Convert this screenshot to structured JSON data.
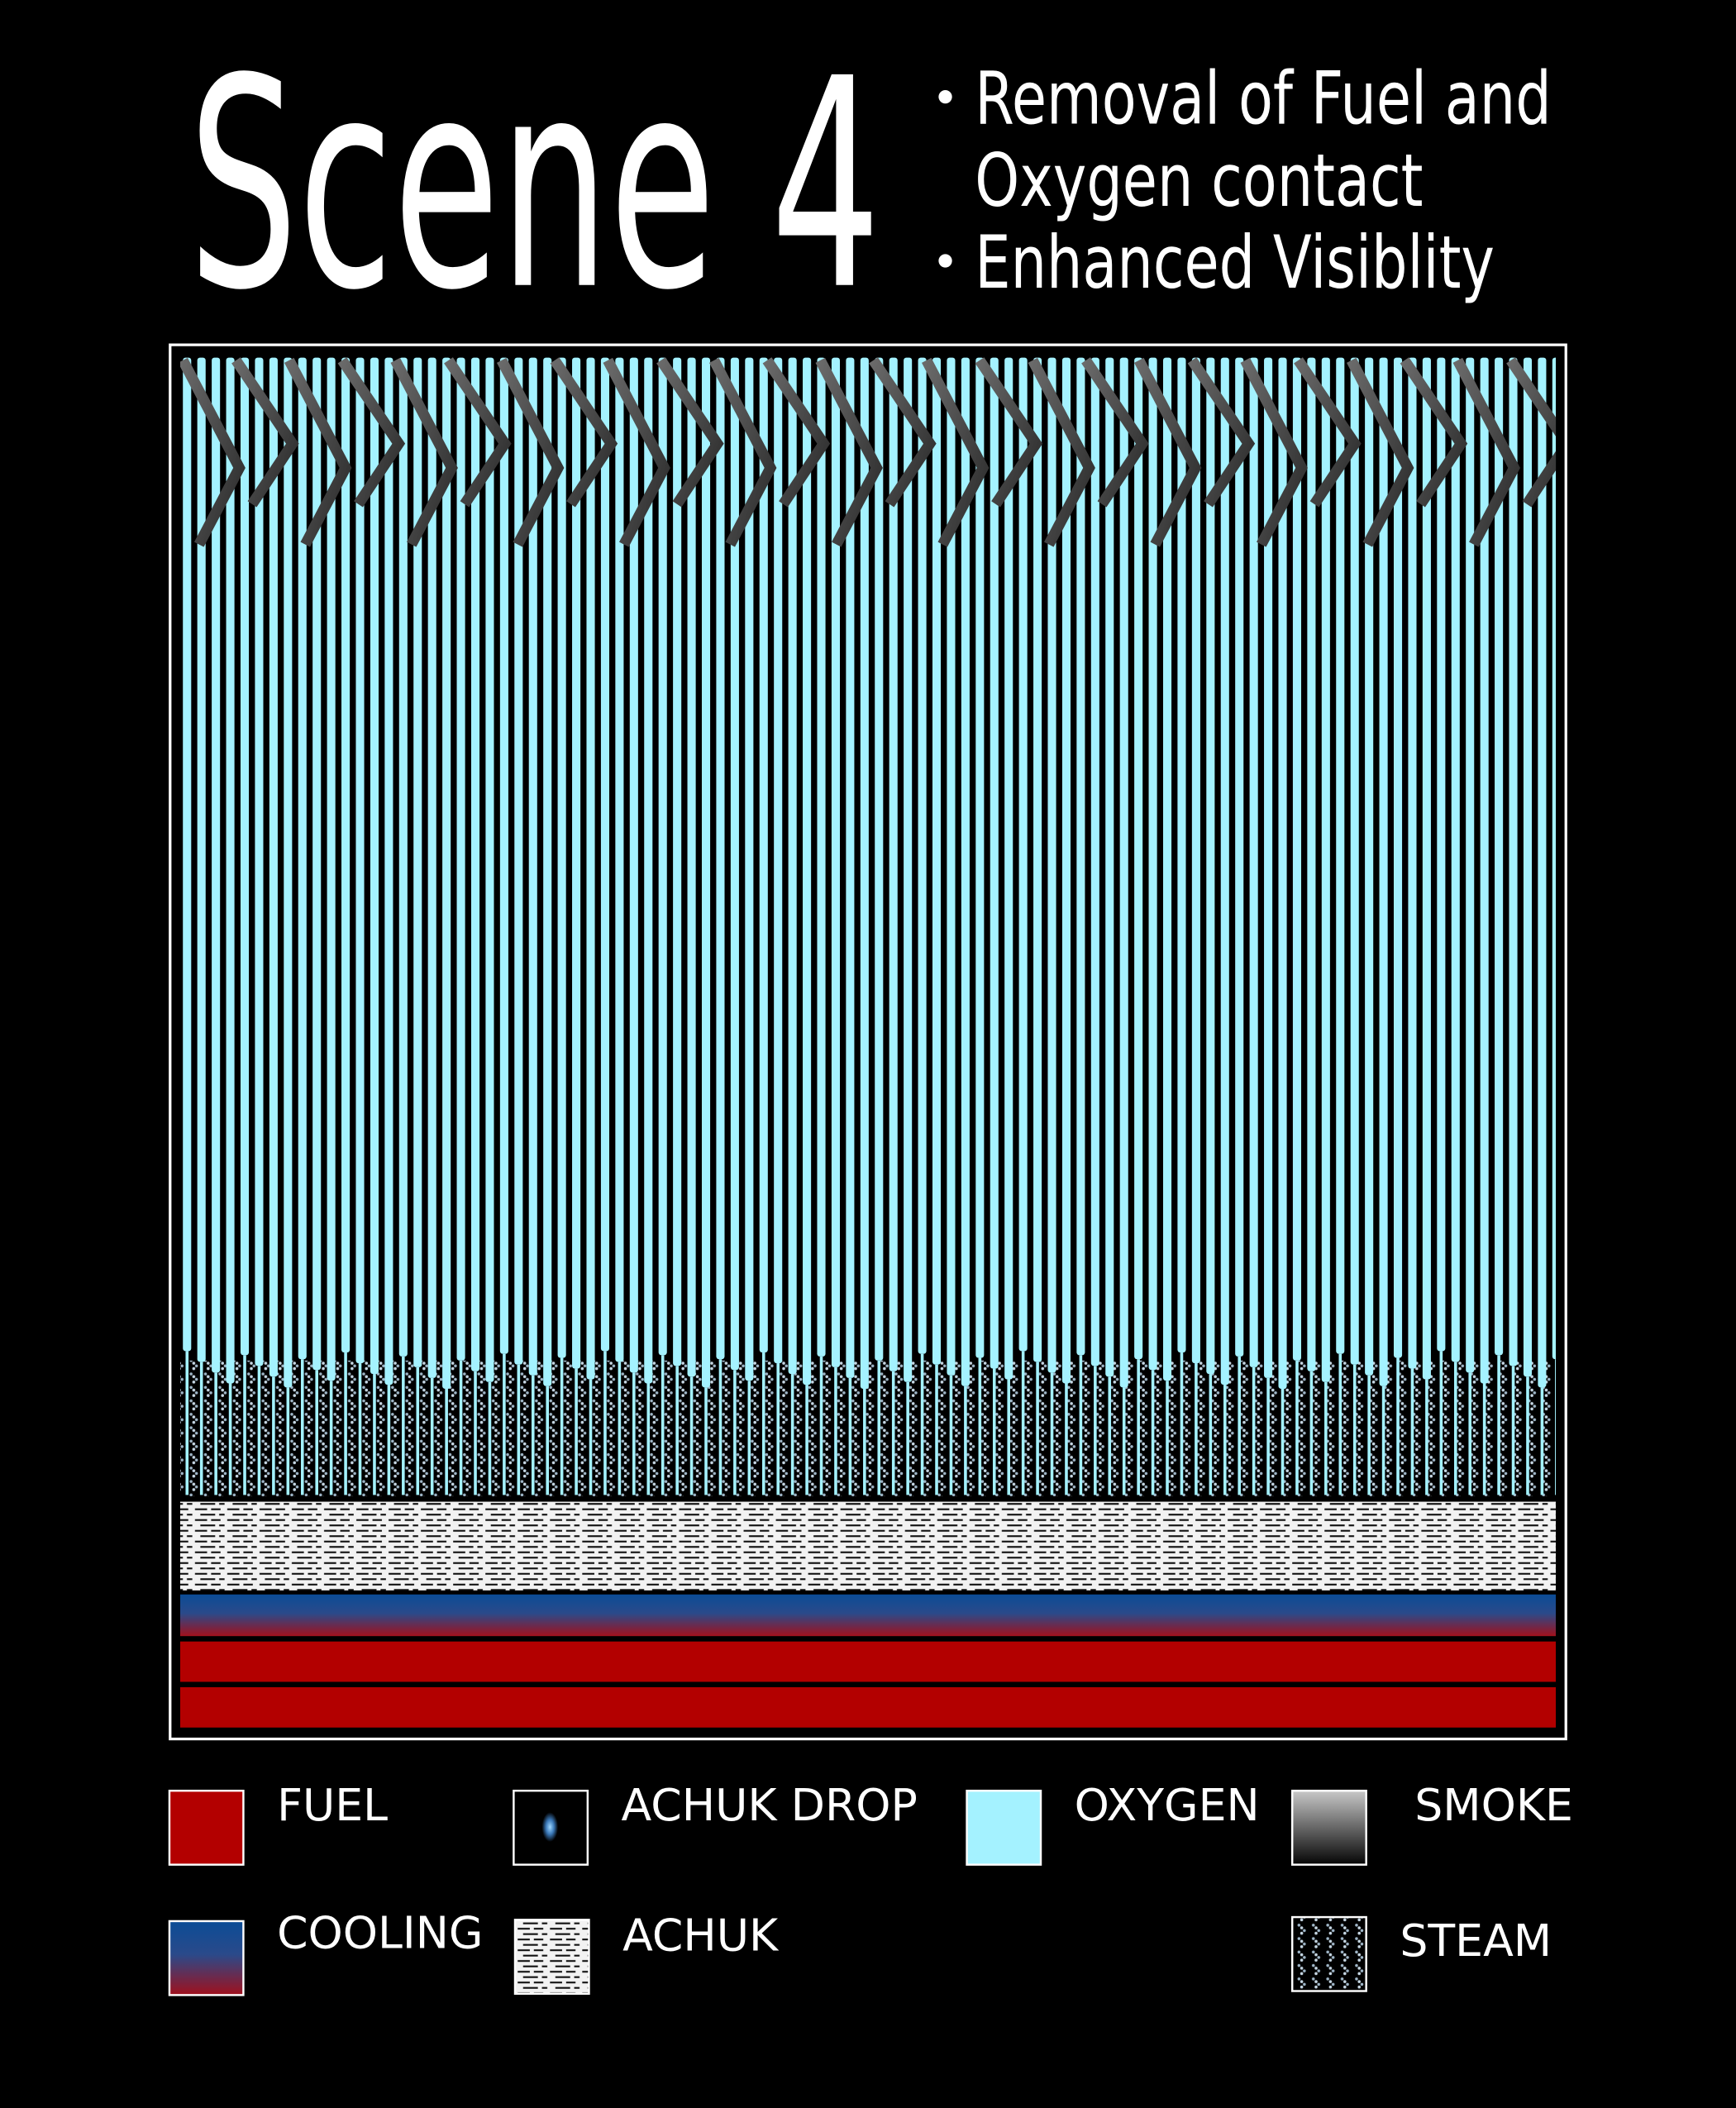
{
  "title": "Scene 4",
  "bullets": [
    [
      "Removal of Fuel and",
      "Oxygen contact"
    ],
    [
      "Enhanced Visiblity"
    ]
  ],
  "legend": [
    {
      "label": "FUEL"
    },
    {
      "label": "ACHUK DROP"
    },
    {
      "label": "OXYGEN"
    },
    {
      "label": "SMOKE"
    },
    {
      "label": "COOLING"
    },
    {
      "label": "ACHUK"
    },
    {
      "label": "STEAM"
    }
  ]
}
